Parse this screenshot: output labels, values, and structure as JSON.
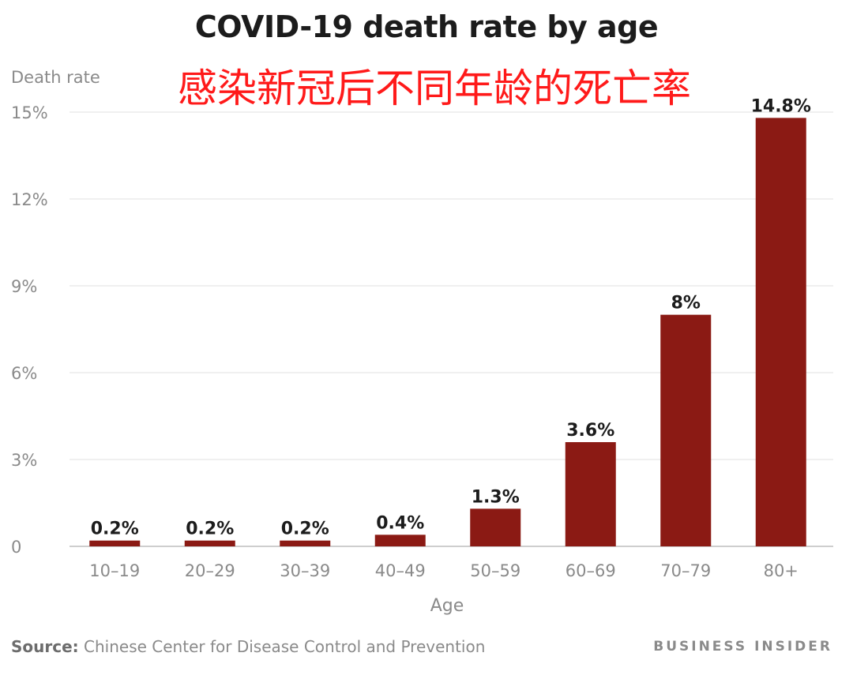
{
  "chart_data": {
    "type": "bar",
    "title": "COVID-19 death rate by age",
    "subtitle": "感染新冠后不同年龄的死亡率",
    "ylabel": "Death rate",
    "xlabel": "Age",
    "categories": [
      "10–19",
      "20–29",
      "30–39",
      "40–49",
      "50–59",
      "60–69",
      "70–79",
      "80+"
    ],
    "values": [
      0.2,
      0.2,
      0.2,
      0.4,
      1.3,
      3.6,
      8,
      14.8
    ],
    "data_labels": [
      "0.2%",
      "0.2%",
      "0.2%",
      "0.4%",
      "1.3%",
      "3.6%",
      "8%",
      "14.8%"
    ],
    "ylim": [
      0,
      15
    ],
    "yticks": [
      0,
      3,
      6,
      9,
      12,
      15
    ],
    "ytick_labels": [
      "0",
      "3%",
      "6%",
      "9%",
      "12%",
      "15%"
    ],
    "grid": true,
    "bar_color": "#8b1a14"
  },
  "footer": {
    "source_label": "Source:",
    "source_text": " Chinese Center for Disease Control and Prevention",
    "brand": "BUSINESS INSIDER"
  }
}
